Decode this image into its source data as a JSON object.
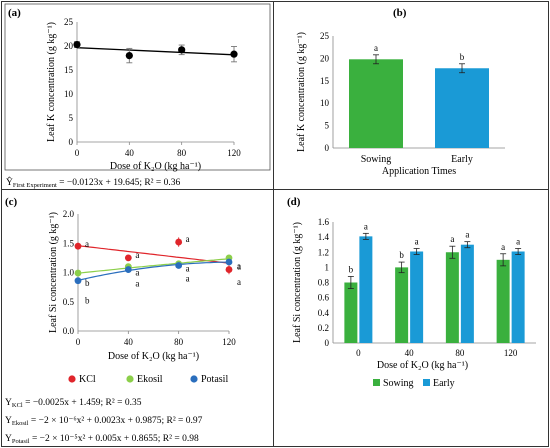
{
  "panels": {
    "a": {
      "label": "(a)",
      "equation": {
        "lhs": "Ŷ",
        "sub": "First Experiment",
        "rhs": " = −0.0123x + 19.645; R² = 0.36"
      }
    },
    "b": {
      "label": "(b)"
    },
    "c": {
      "label": "(c)",
      "equations": [
        {
          "lhs": "Y",
          "sub": "KCl",
          "rhs": " = −0.0025x + 1.459; R² = 0.35"
        },
        {
          "lhs": "Y",
          "sub": "Ekosil",
          "rhs": " = −2 × 10⁻⁶x² + 0.0023x + 0.9875; R² = 0.97"
        },
        {
          "lhs": "Y",
          "sub": "Potasil",
          "rhs": " = −2 × 10⁻⁵x² + 0.005x + 0.8655; R² = 0.98"
        }
      ]
    },
    "d": {
      "label": "(d)"
    }
  },
  "chart_data": [
    {
      "id": "a",
      "type": "scatter",
      "ylabel": "Leaf K concentration  (g kg⁻¹)",
      "xlabel": "Dose of K₂O (kg ha⁻¹)",
      "x": [
        0,
        40,
        80,
        120
      ],
      "y": [
        20.3,
        18.0,
        19.2,
        18.3
      ],
      "yerr": [
        0.6,
        1.5,
        1.0,
        1.6
      ],
      "trend": {
        "slope": -0.0123,
        "intercept": 19.645
      },
      "xticks": [
        "0",
        "40",
        "80",
        "120"
      ],
      "yticks": [
        "0",
        "5",
        "10",
        "15",
        "20",
        "25"
      ],
      "xlim": [
        0,
        120
      ],
      "ylim": [
        0,
        25
      ],
      "colors": {
        "marker": "#000000",
        "line": "#000000"
      }
    },
    {
      "id": "b",
      "type": "bar",
      "ylabel": "Leaf K concentration  (g kg⁻¹)",
      "xlabel": "Application Times",
      "categories": [
        "Sowing",
        "Early"
      ],
      "values": [
        19.8,
        17.8
      ],
      "yerr": [
        1.0,
        1.0
      ],
      "letters": [
        "a",
        "b"
      ],
      "yticks": [
        "0",
        "5",
        "10",
        "15",
        "20",
        "25"
      ],
      "ylim": [
        0,
        25
      ],
      "colors": [
        "#3ab03e",
        "#1a9ad6"
      ]
    },
    {
      "id": "c",
      "type": "line",
      "ylabel": "Leaf Si concentration  (g kg⁻¹)",
      "xlabel": "Dose of K₂O (kg ha⁻¹)",
      "x": [
        0,
        40,
        80,
        120
      ],
      "xticks": [
        "0",
        "40",
        "80",
        "120"
      ],
      "yticks": [
        "0.0",
        "0.5",
        "1.0",
        "1.5",
        "2.0"
      ],
      "xlim": [
        0,
        120
      ],
      "ylim": [
        0,
        2.0
      ],
      "legend_position": "bottom",
      "series": [
        {
          "name": "KCl",
          "values": [
            1.45,
            1.25,
            1.52,
            1.05
          ],
          "yerr": [
            0.06,
            0.05,
            0.08,
            0.08
          ],
          "letters": [
            "a",
            "a",
            "a",
            "a"
          ],
          "color": "#e0252b",
          "trend": [
            1.459,
            -0.0025,
            0
          ]
        },
        {
          "name": "Ekosil",
          "values": [
            0.99,
            1.1,
            1.15,
            1.25
          ],
          "yerr": [
            0.03,
            0.04,
            0.04,
            0.05
          ],
          "letters": [
            "b",
            "a",
            "a",
            "a"
          ],
          "color": "#8ccf4a",
          "trend": [
            0.9875,
            0.0023,
            -2e-06
          ]
        },
        {
          "name": "Potasil",
          "values": [
            0.86,
            1.05,
            1.12,
            1.18
          ],
          "yerr": [
            0.03,
            0.03,
            0.04,
            0.04
          ],
          "letters": [
            "b",
            "a",
            "a",
            "a"
          ],
          "color": "#2a6ebd",
          "trend": [
            0.8655,
            0.005,
            -2e-05
          ]
        }
      ]
    },
    {
      "id": "d",
      "type": "bar",
      "ylabel": "Leaf Si concentration  (g kg⁻¹)",
      "xlabel": "Dose of K₂O (kg ha⁻¹)",
      "categories": [
        "0",
        "40",
        "80",
        "120"
      ],
      "yticks": [
        "0",
        "0.2",
        "0.4",
        "0.6",
        "0.8",
        "1",
        "1.2",
        "1.4",
        "1.6"
      ],
      "ylim": [
        0,
        1.6
      ],
      "legend_position": "bottom",
      "series": [
        {
          "name": "Sowing",
          "values": [
            0.8,
            1.0,
            1.2,
            1.1
          ],
          "yerr": [
            0.08,
            0.07,
            0.08,
            0.08
          ],
          "letters": [
            "b",
            "b",
            "a",
            "a"
          ],
          "color": "#3ab03e"
        },
        {
          "name": "Early",
          "values": [
            1.41,
            1.21,
            1.3,
            1.21
          ],
          "yerr": [
            0.04,
            0.04,
            0.04,
            0.04
          ],
          "letters": [
            "a",
            "a",
            "a",
            "a"
          ],
          "color": "#1a9ad6"
        }
      ]
    }
  ]
}
